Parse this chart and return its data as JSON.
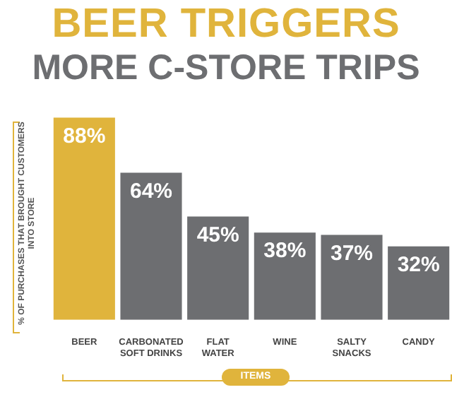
{
  "chart_data": {
    "type": "bar",
    "title": "BEER TRIGGERS",
    "subtitle": "MORE C-STORE TRIPS",
    "ylabel": "% OF PURCHASES THAT BROUGHT CUSTOMERS INTO STORE",
    "xlabel": "ITEMS",
    "categories": [
      "BEER",
      "CARBONATED SOFT DRINKS",
      "FLAT WATER",
      "WINE",
      "SALTY SNACKS",
      "CANDY"
    ],
    "values": [
      88,
      64,
      45,
      38,
      37,
      32
    ],
    "value_labels": [
      "88%",
      "64%",
      "45%",
      "38%",
      "37%",
      "32%"
    ],
    "colors": [
      "#e0b43c",
      "#6d6e71",
      "#6d6e71",
      "#6d6e71",
      "#6d6e71",
      "#6d6e71"
    ],
    "legend": false,
    "grid": false
  }
}
